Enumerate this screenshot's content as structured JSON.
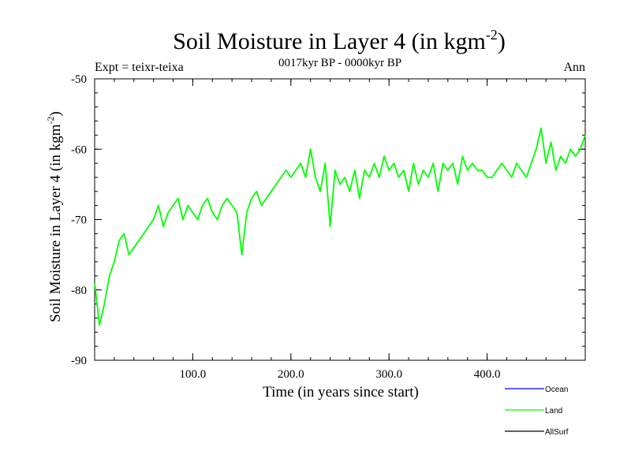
{
  "title": {
    "main": "Soil Moisture in Layer 4 (in kgm",
    "sup": "-2",
    "close": ")"
  },
  "subtitle": "0017kyr BP - 0000kyr BP",
  "experiment": "Expt = teixr-teixa",
  "season": "Ann",
  "colors": {
    "ocean": "#0000ff",
    "land": "#00ff00",
    "allsurf": "#000000",
    "axis": "#000000"
  },
  "chart_data": {
    "type": "line",
    "xlabel": "Time (in years since start)",
    "ylabel": {
      "main": "Soil Moisture in Layer 4 (in kgm",
      "sup": "-2",
      "close": ")"
    },
    "xlim": [
      0,
      500
    ],
    "ylim": [
      -90,
      -50
    ],
    "xticks": [
      100,
      200,
      300,
      400
    ],
    "xtick_labels": [
      "100.0",
      "200.0",
      "300.0",
      "400.0"
    ],
    "yticks": [
      -90,
      -80,
      -70,
      -60,
      -50
    ],
    "ytick_labels": [
      "-90",
      "-80",
      "-70",
      "-60",
      "-50"
    ],
    "legend": [
      "Ocean",
      "Land",
      "AllSurf"
    ],
    "legend_position": "bottom-right",
    "series": [
      {
        "name": "Land",
        "color": "#00ff00",
        "x": [
          0,
          5,
          10,
          15,
          20,
          25,
          30,
          35,
          40,
          45,
          50,
          55,
          60,
          65,
          70,
          75,
          80,
          85,
          90,
          95,
          100,
          105,
          110,
          115,
          120,
          125,
          130,
          135,
          140,
          145,
          150,
          155,
          160,
          165,
          170,
          175,
          180,
          185,
          190,
          195,
          200,
          205,
          210,
          215,
          220,
          225,
          230,
          235,
          240,
          245,
          250,
          255,
          260,
          265,
          270,
          275,
          280,
          285,
          290,
          295,
          300,
          305,
          310,
          315,
          320,
          325,
          330,
          335,
          340,
          345,
          350,
          355,
          360,
          365,
          370,
          375,
          380,
          385,
          390,
          395,
          400,
          405,
          410,
          415,
          420,
          425,
          430,
          435,
          440,
          445,
          450,
          455,
          460,
          465,
          470,
          475,
          480,
          485,
          490,
          495,
          500
        ],
        "values": [
          -79,
          -85,
          -82,
          -78,
          -76,
          -73,
          -72,
          -75,
          -74,
          -73,
          -72,
          -71,
          -70,
          -68,
          -71,
          -69,
          -68,
          -67,
          -70,
          -68,
          -69,
          -70,
          -68,
          -67,
          -69,
          -70,
          -68,
          -67,
          -68,
          -69,
          -75,
          -69,
          -67,
          -66,
          -68,
          -67,
          -66,
          -65,
          -64,
          -63,
          -64,
          -63,
          -62,
          -64,
          -60,
          -64,
          -66,
          -62,
          -71,
          -63,
          -65,
          -64,
          -66,
          -63,
          -67,
          -63,
          -64,
          -62,
          -64,
          -61,
          -63,
          -62,
          -64,
          -63,
          -66,
          -62,
          -65,
          -63,
          -64,
          -62,
          -66,
          -62,
          -63,
          -62,
          -65,
          -61,
          -63,
          -62,
          -63,
          -63,
          -64,
          -64,
          -63,
          -62,
          -63,
          -64,
          -62,
          -63,
          -64,
          -62,
          -60,
          -57,
          -62,
          -59,
          -63,
          -61,
          -62,
          -60,
          -61,
          -60,
          -58
        ]
      }
    ]
  }
}
